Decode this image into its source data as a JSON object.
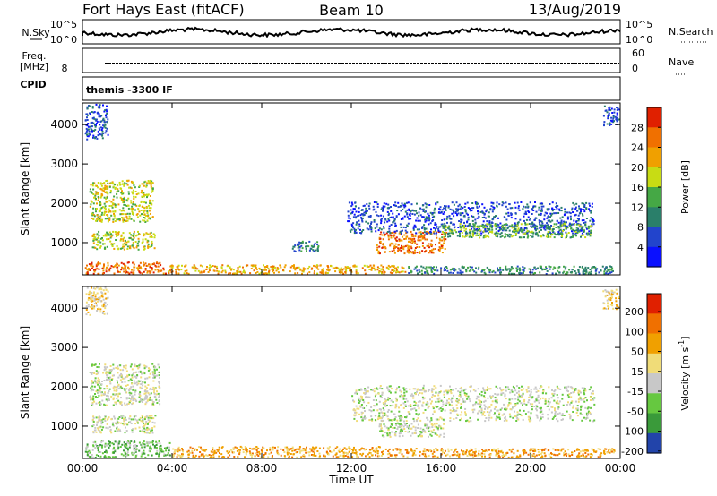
{
  "header": {
    "station": "Fort Hays East (fitACF)",
    "beam": "Beam 10",
    "date": "13/Aug/2019"
  },
  "status_panels": {
    "nsky_label": "N.Sky",
    "nsearch_label": "N.Search",
    "freq_label_top": "Freq.",
    "freq_label_unit": "[MHz]",
    "nave_label": "Nave",
    "cpid_label": "CPID",
    "cpid_text": "themis -3300 IF",
    "nsky_ticks": [
      "10^5",
      "10^0"
    ],
    "nsearch_ticks": [
      "10^5",
      "10^0"
    ],
    "freq_ticks": [
      "8"
    ],
    "nave_ticks": [
      "60",
      "0"
    ]
  },
  "chart_data": [
    {
      "type": "heatmap",
      "name": "power",
      "ylabel": "Slant Range [km]",
      "xlabel": "",
      "x_ticks": [
        "00:00",
        "04:00",
        "08:00",
        "12:00",
        "16:00",
        "20:00",
        "00:00"
      ],
      "x_range_hours": [
        0,
        24
      ],
      "y_ticks": [
        1000,
        2000,
        3000,
        4000
      ],
      "ylim": [
        180,
        4550
      ],
      "colorbar": {
        "label": "Power [dB]",
        "ticks": [
          "4",
          "8",
          "12",
          "16",
          "20",
          "24",
          "28"
        ],
        "colors": [
          "#0a10ff",
          "#2244cc",
          "#2a7f6a",
          "#45a845",
          "#c8dc14",
          "#f0a000",
          "#f07000",
          "#e02000"
        ]
      },
      "regions": [
        {
          "t": [
            0.1,
            3.8
          ],
          "r": [
            180,
            520
          ],
          "level": 6
        },
        {
          "t": [
            3.8,
            14.5
          ],
          "r": [
            180,
            450
          ],
          "level": 5
        },
        {
          "t": [
            14.5,
            23.8
          ],
          "r": [
            180,
            420
          ],
          "level": 2
        },
        {
          "t": [
            0.3,
            3.2
          ],
          "r": [
            1500,
            2600
          ],
          "level": 4
        },
        {
          "t": [
            0.4,
            3.3
          ],
          "r": [
            800,
            1300
          ],
          "level": 4
        },
        {
          "t": [
            0.1,
            1.2
          ],
          "r": [
            3600,
            4550
          ],
          "level": 1
        },
        {
          "t": [
            9.3,
            10.6
          ],
          "r": [
            750,
            1050
          ],
          "level": 2
        },
        {
          "t": [
            13.1,
            16.3
          ],
          "r": [
            700,
            1300
          ],
          "level": 6
        },
        {
          "t": [
            11.8,
            22.9
          ],
          "r": [
            1200,
            2050
          ],
          "level": 1
        },
        {
          "t": [
            16.0,
            22.8
          ],
          "r": [
            1100,
            1500
          ],
          "level": 3
        },
        {
          "t": [
            23.2,
            24.0
          ],
          "r": [
            3950,
            4500
          ],
          "level": 1
        }
      ]
    },
    {
      "type": "heatmap",
      "name": "velocity",
      "ylabel": "Slant Range [km]",
      "xlabel": "Time UT",
      "x_ticks": [
        "00:00",
        "04:00",
        "08:00",
        "12:00",
        "16:00",
        "20:00",
        "00:00"
      ],
      "x_range_hours": [
        0,
        24
      ],
      "y_ticks": [
        1000,
        2000,
        3000,
        4000
      ],
      "ylim": [
        180,
        4550
      ],
      "colorbar": {
        "label": "Velocity [m s^-1]",
        "ticks": [
          "200",
          "100",
          "50",
          "15",
          "-15",
          "-50",
          "-100",
          "-200"
        ],
        "colors": [
          "#2244aa",
          "#3a9a3a",
          "#66c840",
          "#c8c8c8",
          "#f0dc78",
          "#f0a000",
          "#f07000",
          "#e02000"
        ]
      },
      "regions": [
        {
          "t": [
            0.1,
            4.0
          ],
          "r": [
            180,
            650
          ],
          "level": 2
        },
        {
          "t": [
            4.0,
            13.5
          ],
          "r": [
            180,
            500
          ],
          "level": 5
        },
        {
          "t": [
            13.5,
            23.8
          ],
          "r": [
            180,
            450
          ],
          "level": 5
        },
        {
          "t": [
            0.3,
            3.5
          ],
          "r": [
            1500,
            2600
          ],
          "level": 3
        },
        {
          "t": [
            0.4,
            3.3
          ],
          "r": [
            800,
            1300
          ],
          "level": 3
        },
        {
          "t": [
            12.0,
            22.9
          ],
          "r": [
            1100,
            2050
          ],
          "level": 3
        },
        {
          "t": [
            13.2,
            16.2
          ],
          "r": [
            700,
            1100
          ],
          "level": 3
        },
        {
          "t": [
            0.1,
            1.2
          ],
          "r": [
            3800,
            4550
          ],
          "level": 4
        },
        {
          "t": [
            23.2,
            24.0
          ],
          "r": [
            3950,
            4500
          ],
          "level": 4
        }
      ]
    }
  ]
}
